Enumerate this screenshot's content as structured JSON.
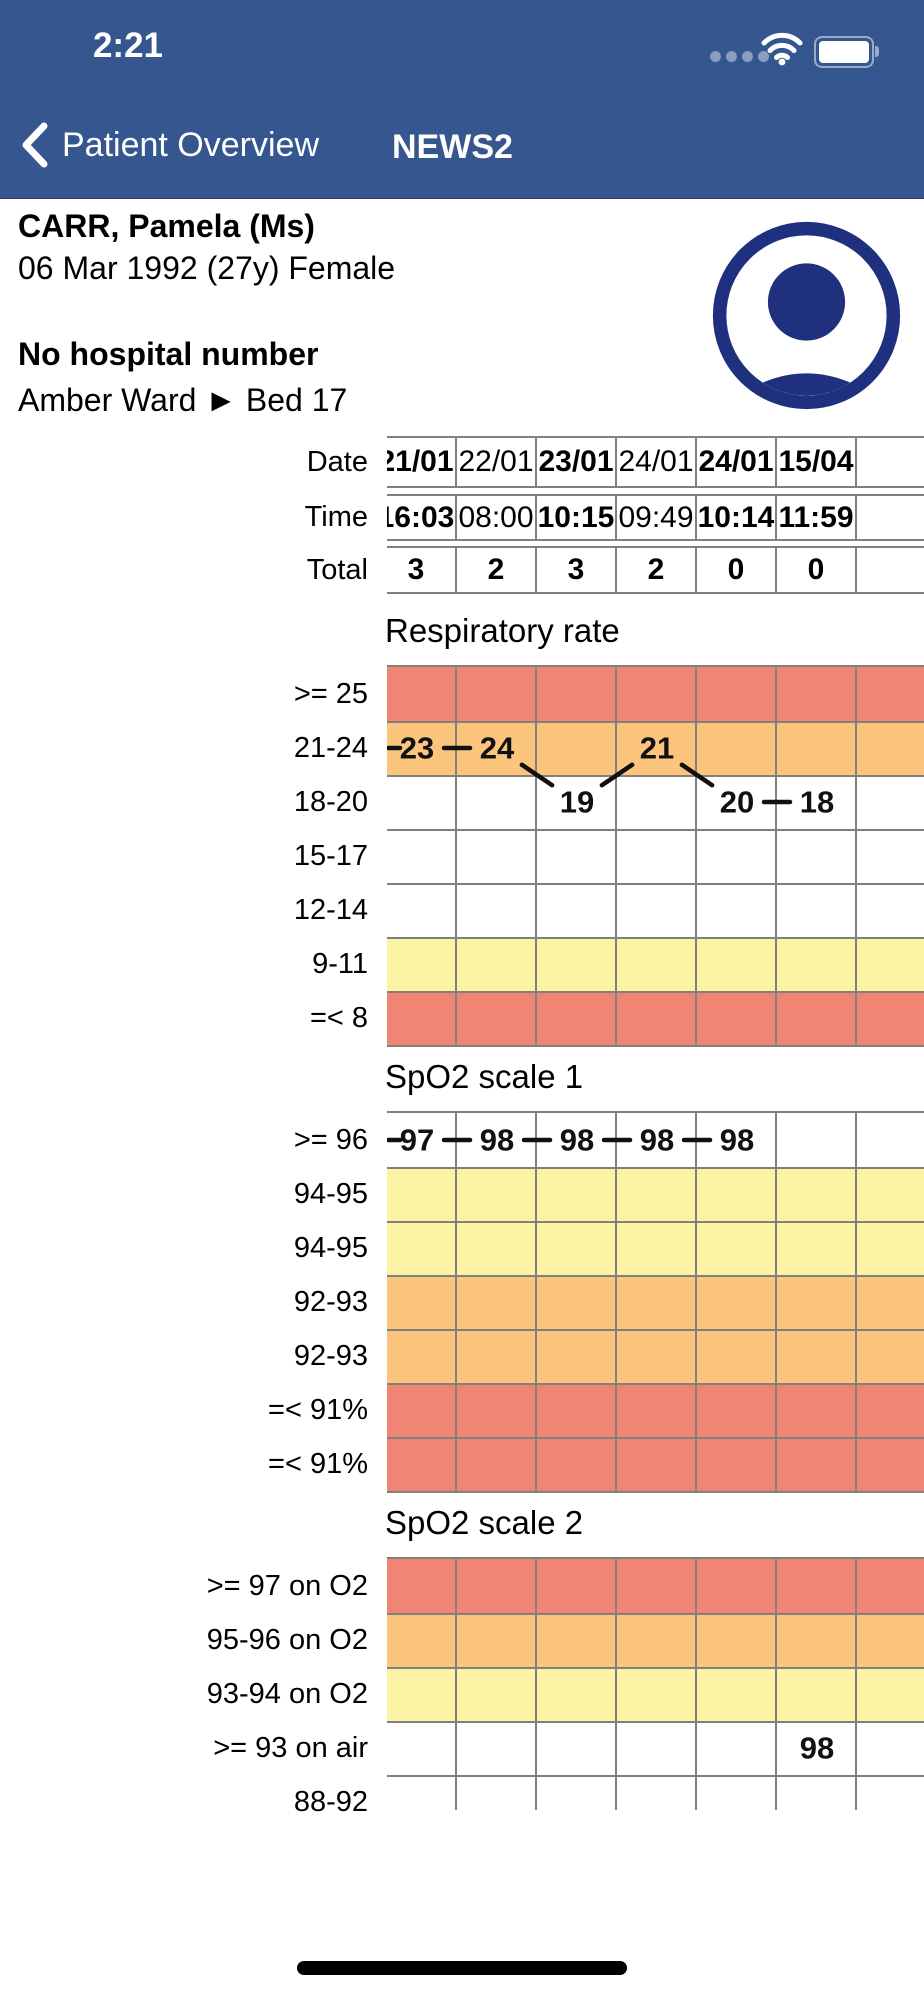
{
  "status_bar": {
    "time": "2:21"
  },
  "nav": {
    "back_label": "Patient Overview",
    "title": "NEWS2"
  },
  "patient": {
    "name": "CARR, Pamela (Ms)",
    "dob_line": "06 Mar 1992 (27y) Female",
    "hospital_number": "No hospital number",
    "ward_line": "Amber Ward ► Bed 17"
  },
  "palette": {
    "header_blue": "#35568E",
    "avatar_navy": "#1E307E",
    "band_red": "#F08574",
    "band_orange": "#FBC57E",
    "band_yellow": "#FCF3A4",
    "band_white": "#FFFFFF",
    "grid": "#808080",
    "line": "#111111"
  },
  "header_table": {
    "rows": [
      {
        "label": "Date",
        "values": [
          "21/01",
          "22/01",
          "23/01",
          "24/01",
          "24/01",
          "15/04",
          ""
        ],
        "bold": [
          true,
          false,
          true,
          false,
          true,
          true,
          false
        ]
      },
      {
        "label": "Time",
        "values": [
          "16:03",
          "08:00",
          "10:15",
          "09:49",
          "10:14",
          "11:59",
          ""
        ],
        "bold": [
          true,
          false,
          true,
          false,
          true,
          true,
          false
        ]
      },
      {
        "label": "Total",
        "values": [
          "3",
          "2",
          "3",
          "2",
          "0",
          "0",
          ""
        ],
        "bold": [
          true,
          true,
          true,
          true,
          true,
          true,
          false
        ]
      }
    ]
  },
  "chart_data": [
    {
      "type": "line",
      "title": "Respiratory rate",
      "x_categories": [
        "21/01 16:03",
        "22/01 08:00",
        "23/01 10:15",
        "24/01 09:49",
        "24/01 10:14",
        "15/04 11:59",
        ""
      ],
      "bands": [
        {
          "label": ">= 25",
          "color": "band_red"
        },
        {
          "label": "21-24",
          "color": "band_orange"
        },
        {
          "label": "18-20",
          "color": "band_white"
        },
        {
          "label": "15-17",
          "color": "band_white"
        },
        {
          "label": "12-14",
          "color": "band_white"
        },
        {
          "label": "9-11",
          "color": "band_yellow"
        },
        {
          "label": "=< 8",
          "color": "band_red"
        }
      ],
      "points": [
        {
          "col": 0,
          "band": 1,
          "value": 23
        },
        {
          "col": 1,
          "band": 1,
          "value": 24
        },
        {
          "col": 2,
          "band": 2,
          "value": 19
        },
        {
          "col": 3,
          "band": 1,
          "value": 21
        },
        {
          "col": 4,
          "band": 2,
          "value": 20
        },
        {
          "col": 5,
          "band": 2,
          "value": 18
        }
      ],
      "connected": true,
      "left_stub": true
    },
    {
      "type": "line",
      "title": "SpO2 scale 1",
      "x_categories": [
        "21/01 16:03",
        "22/01 08:00",
        "23/01 10:15",
        "24/01 09:49",
        "24/01 10:14",
        "15/04 11:59",
        ""
      ],
      "bands": [
        {
          "label": ">= 96",
          "color": "band_white"
        },
        {
          "label": "94-95",
          "color": "band_yellow"
        },
        {
          "label": "94-95",
          "color": "band_yellow"
        },
        {
          "label": "92-93",
          "color": "band_orange"
        },
        {
          "label": "92-93",
          "color": "band_orange"
        },
        {
          "label": "=< 91%",
          "color": "band_red"
        },
        {
          "label": "=< 91%",
          "color": "band_red"
        }
      ],
      "points": [
        {
          "col": 0,
          "band": 0,
          "value": 97
        },
        {
          "col": 1,
          "band": 0,
          "value": 98
        },
        {
          "col": 2,
          "band": 0,
          "value": 98
        },
        {
          "col": 3,
          "band": 0,
          "value": 98
        },
        {
          "col": 4,
          "band": 0,
          "value": 98
        }
      ],
      "connected": true,
      "left_stub": true
    },
    {
      "type": "line",
      "title": "SpO2 scale 2",
      "x_categories": [
        "21/01 16:03",
        "22/01 08:00",
        "23/01 10:15",
        "24/01 09:49",
        "24/01 10:14",
        "15/04 11:59",
        ""
      ],
      "bands": [
        {
          "label": ">= 97 on O2",
          "color": "band_red"
        },
        {
          "label": "95-96 on O2",
          "color": "band_orange"
        },
        {
          "label": "93-94 on O2",
          "color": "band_yellow"
        },
        {
          "label": ">= 93 on air",
          "color": "band_white"
        },
        {
          "label": "88-92",
          "color": "band_white"
        }
      ],
      "points": [
        {
          "col": 5,
          "band": 3,
          "value": 98
        }
      ],
      "connected": false,
      "left_stub": false,
      "clipped_bottom": true
    }
  ]
}
